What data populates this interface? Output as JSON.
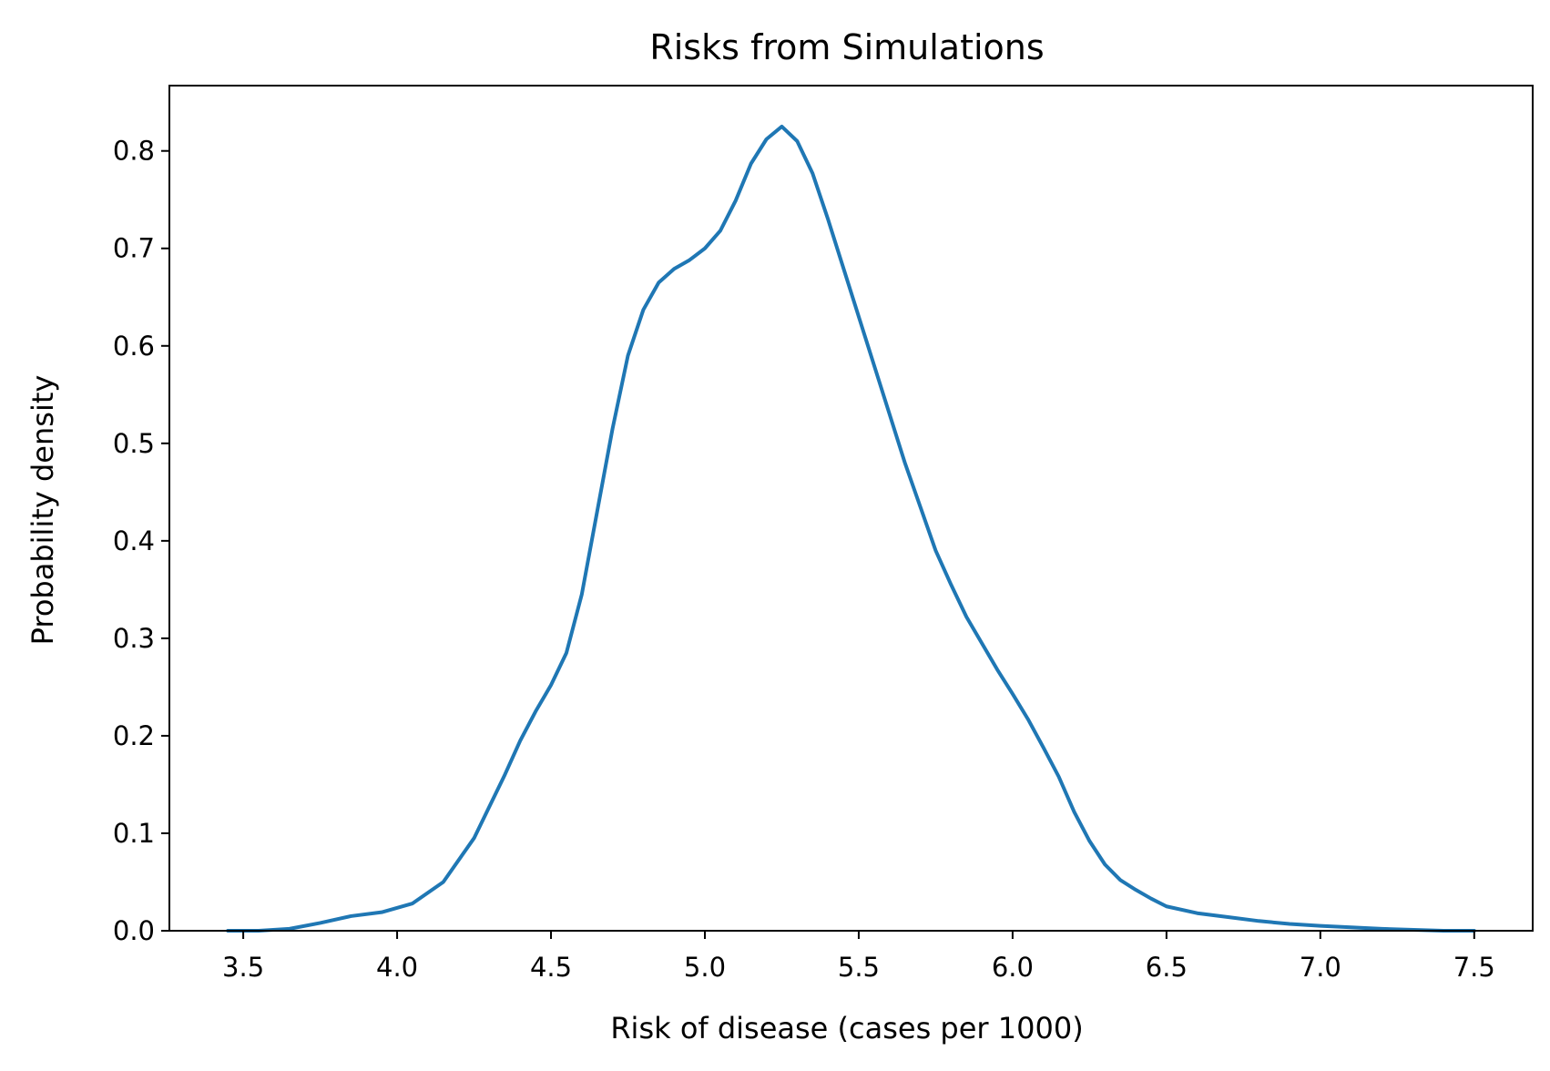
{
  "chart_data": {
    "type": "line",
    "title": "Risks from Simulations",
    "xlabel": "Risk of disease (cases per 1000)",
    "ylabel": "Probability density",
    "xlim": [
      3.26,
      7.69
    ],
    "ylim": [
      0.0,
      0.867
    ],
    "xticks": [
      "3.5",
      "4.0",
      "4.5",
      "5.0",
      "5.5",
      "6.0",
      "6.5",
      "7.0",
      "7.5"
    ],
    "yticks": [
      "0.0",
      "0.1",
      "0.2",
      "0.3",
      "0.4",
      "0.5",
      "0.6",
      "0.7",
      "0.8"
    ],
    "grid": false,
    "series": [
      {
        "color": "#1f77b4",
        "x": [
          3.45,
          3.55,
          3.65,
          3.75,
          3.85,
          3.95,
          4.05,
          4.15,
          4.25,
          4.35,
          4.4,
          4.45,
          4.5,
          4.55,
          4.6,
          4.65,
          4.7,
          4.75,
          4.8,
          4.85,
          4.9,
          4.95,
          5.0,
          5.05,
          5.1,
          5.15,
          5.2,
          5.25,
          5.3,
          5.35,
          5.4,
          5.45,
          5.5,
          5.55,
          5.6,
          5.65,
          5.7,
          5.75,
          5.8,
          5.85,
          5.9,
          5.95,
          6.0,
          6.05,
          6.1,
          6.15,
          6.2,
          6.25,
          6.3,
          6.35,
          6.4,
          6.45,
          6.5,
          6.6,
          6.7,
          6.8,
          6.9,
          7.0,
          7.2,
          7.4,
          7.5
        ],
        "y": [
          0.0,
          0.0,
          0.002,
          0.008,
          0.015,
          0.019,
          0.028,
          0.05,
          0.095,
          0.16,
          0.195,
          0.225,
          0.252,
          0.285,
          0.345,
          0.43,
          0.515,
          0.59,
          0.637,
          0.665,
          0.679,
          0.688,
          0.7,
          0.718,
          0.749,
          0.787,
          0.812,
          0.825,
          0.81,
          0.777,
          0.73,
          0.68,
          0.63,
          0.58,
          0.53,
          0.48,
          0.435,
          0.39,
          0.355,
          0.322,
          0.295,
          0.268,
          0.243,
          0.217,
          0.188,
          0.158,
          0.122,
          0.092,
          0.068,
          0.052,
          0.042,
          0.033,
          0.025,
          0.018,
          0.014,
          0.01,
          0.007,
          0.005,
          0.002,
          0.0,
          0.0
        ]
      }
    ]
  }
}
